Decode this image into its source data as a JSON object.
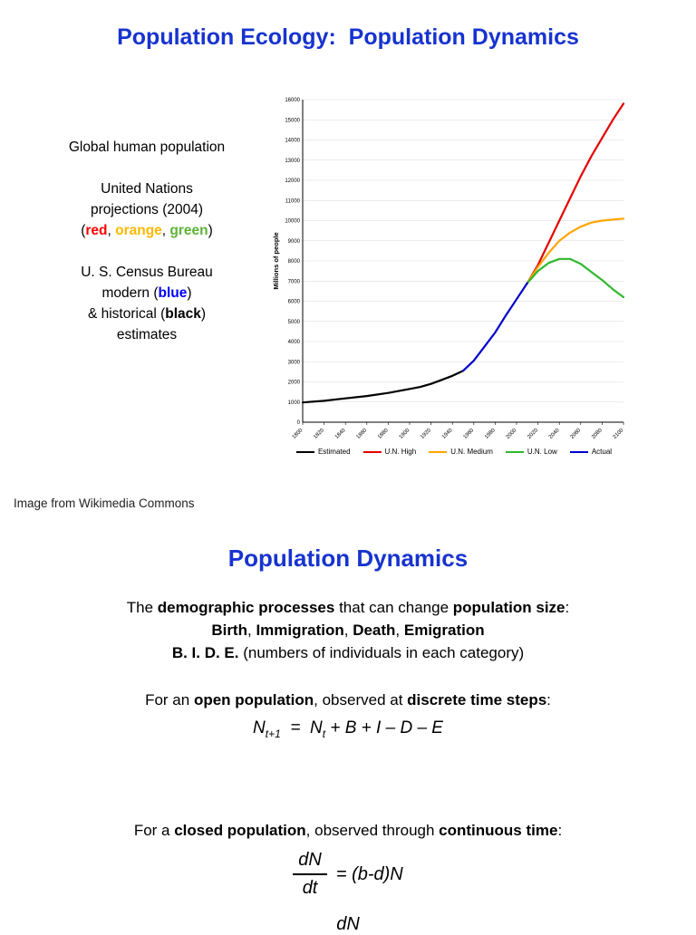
{
  "slide1": {
    "title": "Population Ecology:  Population Dynamics",
    "sidebar": {
      "line1": "Global human population",
      "un1": "United Nations",
      "un2": "projections (2004)",
      "paren_open": "(",
      "red": "red",
      "comma1": ", ",
      "orange": "orange",
      "comma2": ", ",
      "green": "green",
      "paren_close": ")",
      "census1": "U. S. Census Bureau",
      "modern_pre": "modern (",
      "blue": "blue",
      "modern_post": ")",
      "hist_pre": "& historical (",
      "black": "black",
      "hist_post": ")",
      "estimates": "estimates"
    },
    "credit": "Image from Wikimedia Commons"
  },
  "chart_data": {
    "type": "line",
    "title": "",
    "xlabel": "",
    "ylabel": "Millions of people",
    "xlim": [
      1800,
      2100
    ],
    "ylim": [
      0,
      16000
    ],
    "x_ticks": [
      1800,
      1820,
      1840,
      1860,
      1880,
      1900,
      1920,
      1940,
      1960,
      1980,
      2000,
      2020,
      2040,
      2060,
      2080,
      2100
    ],
    "y_tick_step": 1000,
    "grid": "horizontal",
    "legend_position": "bottom",
    "series": [
      {
        "name": "Estimated",
        "color": "#000000",
        "points": [
          [
            1800,
            980
          ],
          [
            1820,
            1060
          ],
          [
            1840,
            1180
          ],
          [
            1860,
            1300
          ],
          [
            1880,
            1450
          ],
          [
            1900,
            1650
          ],
          [
            1910,
            1750
          ],
          [
            1920,
            1900
          ],
          [
            1930,
            2100
          ],
          [
            1940,
            2300
          ],
          [
            1950,
            2550
          ]
        ]
      },
      {
        "name": "U.N. High",
        "color": "#e60000",
        "points": [
          [
            2010,
            6900
          ],
          [
            2020,
            7800
          ],
          [
            2030,
            8900
          ],
          [
            2040,
            10000
          ],
          [
            2050,
            11100
          ],
          [
            2060,
            12200
          ],
          [
            2070,
            13200
          ],
          [
            2080,
            14100
          ],
          [
            2090,
            15000
          ],
          [
            2100,
            15800
          ]
        ]
      },
      {
        "name": "U.N. Medium",
        "color": "#ffa500",
        "points": [
          [
            2010,
            6900
          ],
          [
            2020,
            7700
          ],
          [
            2030,
            8400
          ],
          [
            2040,
            9000
          ],
          [
            2050,
            9400
          ],
          [
            2060,
            9700
          ],
          [
            2070,
            9900
          ],
          [
            2080,
            10000
          ],
          [
            2090,
            10050
          ],
          [
            2100,
            10100
          ]
        ]
      },
      {
        "name": "U.N. Low",
        "color": "#2eb82e",
        "points": [
          [
            2010,
            6900
          ],
          [
            2020,
            7500
          ],
          [
            2030,
            7900
          ],
          [
            2040,
            8100
          ],
          [
            2050,
            8100
          ],
          [
            2060,
            7850
          ],
          [
            2070,
            7450
          ],
          [
            2080,
            7050
          ],
          [
            2090,
            6600
          ],
          [
            2100,
            6200
          ]
        ]
      },
      {
        "name": "Actual",
        "color": "#0000cc",
        "points": [
          [
            1950,
            2550
          ],
          [
            1960,
            3050
          ],
          [
            1970,
            3750
          ],
          [
            1980,
            4450
          ],
          [
            1990,
            5300
          ],
          [
            2000,
            6100
          ],
          [
            2010,
            6900
          ]
        ]
      }
    ]
  },
  "slide2": {
    "title": "Population Dynamics",
    "para1": {
      "s1": "The ",
      "s2": "demographic processes",
      "s3": " that can change ",
      "s4": "population size",
      "s5": ":",
      "l2s1": "Birth",
      "l2s2": ", ",
      "l2s3": "Immigration",
      "l2s4": ", ",
      "l2s5": "Death",
      "l2s6": ", ",
      "l2s7": "Emigration",
      "l3s1": "B. I. D. E.",
      "l3s2": " (numbers of individuals in each category)"
    },
    "open_line": {
      "s1": "For an ",
      "s2": "open population",
      "s3": ", observed at ",
      "s4": "discrete time steps",
      "s5": ":"
    },
    "formula1": {
      "n1": "N",
      "sub1": "t+1",
      "eq": "  =  ",
      "n2": "N",
      "sub2": "t",
      "rest": " + B + I – D – E"
    },
    "closed_line": {
      "s1": "For a ",
      "s2": "closed population",
      "s3": ", observed through ",
      "s4": "continuous time",
      "s5": ":"
    },
    "formula2": {
      "num": "dN",
      "den": "dt",
      "rhs": "= (b-d)N"
    },
    "formula3_partial": "dN"
  },
  "colors": {
    "title_blue": "#1733cf",
    "word_red": "#ff0000",
    "word_orange": "#ffb800",
    "word_green": "#5fb336",
    "word_blue": "#0000ff",
    "word_black": "#000000"
  }
}
